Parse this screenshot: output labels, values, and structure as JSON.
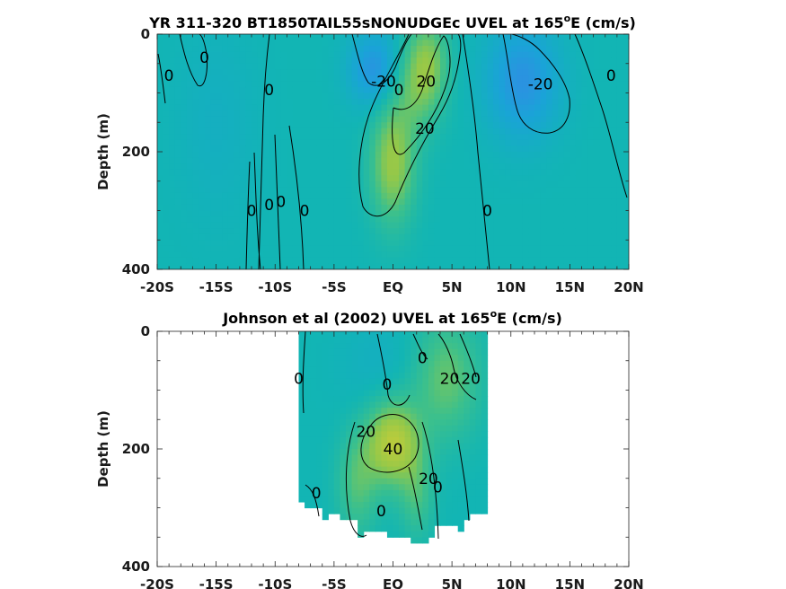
{
  "chart_data": [
    {
      "type": "heatmap",
      "title": "YR 311-320 BT1850TAIL55sNONUDGEc UVEL at 165",
      "title_sup": "o",
      "title_end": "E (cm/s)",
      "ylabel": "Depth (m)",
      "xlim": [
        -20,
        20
      ],
      "ylim": [
        400,
        0
      ],
      "x_ticks": [
        -20,
        -15,
        -10,
        -5,
        0,
        5,
        10,
        15,
        20
      ],
      "x_tick_labels": [
        "-20S",
        "-15S",
        "-10S",
        "-5S",
        "EQ",
        "5N",
        "10N",
        "15N",
        "20N"
      ],
      "y_ticks": [
        0,
        200,
        400
      ],
      "y_tick_labels": [
        "0",
        "200",
        "400"
      ],
      "colormap": [
        "#3e80ea",
        "#1aa3d8",
        "#12b5b4",
        "#3cc08c",
        "#92c84a",
        "#c0cc3a"
      ],
      "field_sources": [
        {
          "lat": 0,
          "depth": 220,
          "sx": 1.3,
          "sy": 70,
          "value": 32
        },
        {
          "lat": 2,
          "depth": 90,
          "sx": 1.5,
          "sy": 55,
          "value": 20
        },
        {
          "lat": 3,
          "depth": 40,
          "sx": 1.2,
          "sy": 50,
          "value": 20
        },
        {
          "lat": -1.5,
          "depth": 60,
          "sx": 1.6,
          "sy": 45,
          "value": -22
        },
        {
          "lat": 11,
          "depth": 80,
          "sx": 2.2,
          "sy": 70,
          "value": -22
        },
        {
          "lat": -15,
          "depth": 150,
          "sx": 2.5,
          "sy": 120,
          "value": -5
        }
      ],
      "contour_labels": [
        {
          "text": "0",
          "lat": -19,
          "depth": 70
        },
        {
          "text": "0",
          "lat": -16,
          "depth": 40
        },
        {
          "text": "0",
          "lat": -10.5,
          "depth": 95
        },
        {
          "text": "0",
          "lat": -12,
          "depth": 300
        },
        {
          "text": "0",
          "lat": -10.5,
          "depth": 290
        },
        {
          "text": "0",
          "lat": -9.5,
          "depth": 285
        },
        {
          "text": "0",
          "lat": -7.5,
          "depth": 300
        },
        {
          "text": "-20",
          "lat": -0.8,
          "depth": 80
        },
        {
          "text": "0",
          "lat": 0.5,
          "depth": 95
        },
        {
          "text": "20",
          "lat": 2.8,
          "depth": 80
        },
        {
          "text": "20",
          "lat": 2.7,
          "depth": 160
        },
        {
          "text": "0",
          "lat": 8,
          "depth": 300
        },
        {
          "text": "-20",
          "lat": 12.5,
          "depth": 85
        },
        {
          "text": "0",
          "lat": 18.5,
          "depth": 70
        }
      ]
    },
    {
      "type": "heatmap",
      "title": "Johnson et al (2002) UVEL at 165",
      "title_sup": "o",
      "title_end": "E (cm/s)",
      "ylabel": "Depth (m)",
      "xlim": [
        -20,
        20
      ],
      "ylim": [
        400,
        0
      ],
      "data_extent_lat": [
        -8,
        8
      ],
      "x_ticks": [
        -20,
        -15,
        -10,
        -5,
        0,
        5,
        10,
        15,
        20
      ],
      "x_tick_labels": [
        "-20S",
        "-15S",
        "-10S",
        "-5S",
        "EQ",
        "5N",
        "10N",
        "15N",
        "20N"
      ],
      "y_ticks": [
        0,
        200,
        400
      ],
      "y_tick_labels": [
        "0",
        "200",
        "400"
      ],
      "colormap": [
        "#3e80ea",
        "#1aa3d8",
        "#12b5b4",
        "#3cc08c",
        "#92c84a",
        "#c0cc3a"
      ],
      "field_sources": [
        {
          "lat": 0,
          "depth": 190,
          "sx": 1.6,
          "sy": 50,
          "value": 42
        },
        {
          "lat": 4.5,
          "depth": 80,
          "sx": 2.0,
          "sy": 70,
          "value": 22
        },
        {
          "lat": -3,
          "depth": 260,
          "sx": 1.2,
          "sy": 60,
          "value": 18
        },
        {
          "lat": 2,
          "depth": 280,
          "sx": 1.0,
          "sy": 50,
          "value": 15
        },
        {
          "lat": -1,
          "depth": 60,
          "sx": 2.5,
          "sy": 60,
          "value": -5
        }
      ],
      "contour_labels": [
        {
          "text": "0",
          "lat": -8,
          "depth": 80
        },
        {
          "text": "0",
          "lat": -0.5,
          "depth": 90
        },
        {
          "text": "0",
          "lat": 2.5,
          "depth": 45
        },
        {
          "text": "20",
          "lat": 4.8,
          "depth": 80
        },
        {
          "text": "20",
          "lat": 6.6,
          "depth": 80
        },
        {
          "text": "20",
          "lat": -2.3,
          "depth": 170
        },
        {
          "text": "40",
          "lat": 0,
          "depth": 200
        },
        {
          "text": "20",
          "lat": 3,
          "depth": 250
        },
        {
          "text": "0",
          "lat": 3.8,
          "depth": 265
        },
        {
          "text": "0",
          "lat": -6.5,
          "depth": 275
        },
        {
          "text": "0",
          "lat": -1,
          "depth": 305
        }
      ]
    }
  ]
}
